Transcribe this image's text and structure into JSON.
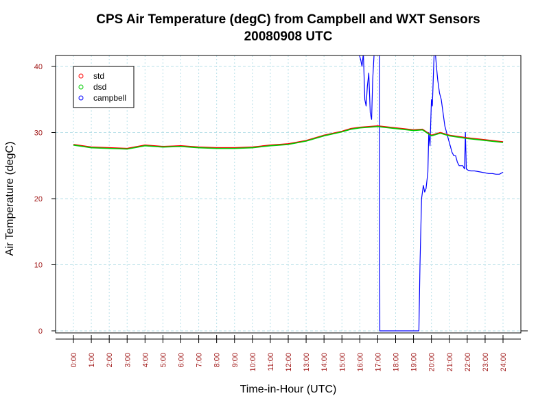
{
  "chart_data": {
    "type": "line",
    "title": "CPS Air Temperature (degC) from Campbell and WXT Sensors",
    "subtitle": "20080908  UTC",
    "xlabel": "Time-in-Hour (UTC)",
    "ylabel": "Air Temperature (degC)",
    "xlim": [
      0,
      24
    ],
    "ylim": [
      0,
      40
    ],
    "yticks": [
      0,
      10,
      20,
      30,
      40
    ],
    "xticks": [
      "0:00",
      "1:00",
      "2:00",
      "3:00",
      "4:00",
      "5:00",
      "6:00",
      "7:00",
      "8:00",
      "9:00",
      "10:00",
      "11:00",
      "12:00",
      "13:00",
      "14:00",
      "15:00",
      "16:00",
      "17:00",
      "18:00",
      "19:00",
      "20:00",
      "21:00",
      "22:00",
      "23:00",
      "24:00"
    ],
    "grid": true,
    "legend": {
      "position": "top-left",
      "entries": [
        "std",
        "dsd",
        "campbell"
      ]
    },
    "colors": {
      "std": "#ff0000",
      "dsd": "#00cc00",
      "campbell": "#0000ff",
      "grid": "#b8e0e8",
      "tick_label": "#a01818"
    },
    "series": [
      {
        "name": "std",
        "x": [
          0,
          1,
          2,
          3,
          4,
          5,
          6,
          7,
          8,
          9,
          10,
          11,
          12,
          13,
          14,
          15,
          15.5,
          16,
          17,
          18,
          19,
          19.5,
          20,
          20.5,
          21,
          22,
          23,
          24
        ],
        "y": [
          28.2,
          27.8,
          27.7,
          27.6,
          28.1,
          27.9,
          28.0,
          27.8,
          27.7,
          27.7,
          27.8,
          28.1,
          28.3,
          28.8,
          29.6,
          30.2,
          30.6,
          30.8,
          31.0,
          30.7,
          30.4,
          30.5,
          29.6,
          30.0,
          29.6,
          29.2,
          28.9,
          28.6
        ]
      },
      {
        "name": "dsd",
        "x": [
          0,
          1,
          2,
          3,
          4,
          5,
          6,
          7,
          8,
          9,
          10,
          11,
          12,
          13,
          14,
          15,
          15.5,
          16,
          17,
          18,
          19,
          19.5,
          20,
          20.5,
          21,
          22,
          23,
          24
        ],
        "y": [
          28.1,
          27.7,
          27.6,
          27.5,
          28.0,
          27.8,
          27.9,
          27.7,
          27.6,
          27.6,
          27.7,
          28.0,
          28.2,
          28.7,
          29.5,
          30.1,
          30.5,
          30.7,
          30.9,
          30.6,
          30.3,
          30.4,
          29.5,
          29.9,
          29.5,
          29.1,
          28.8,
          28.5
        ]
      },
      {
        "name": "campbell",
        "x": [
          15.95,
          16.05,
          16.12,
          16.2,
          16.28,
          16.35,
          16.42,
          16.5,
          16.58,
          16.66,
          16.72,
          16.8,
          17.1,
          17.12,
          19.3,
          19.36,
          19.45,
          19.55,
          19.62,
          19.7,
          19.8,
          19.85,
          19.92,
          20.0,
          20.05,
          20.1,
          20.15,
          20.22,
          20.28,
          20.35,
          20.45,
          20.55,
          20.65,
          20.75,
          20.85,
          20.95,
          21.05,
          21.15,
          21.25,
          21.35,
          21.45,
          21.55,
          21.65,
          21.75,
          21.85,
          21.9,
          21.95,
          22.05,
          22.2,
          22.4,
          22.6,
          22.8,
          23.0,
          23.2,
          23.4,
          23.6,
          23.8,
          24.0
        ],
        "y": [
          42,
          41,
          40,
          42,
          35,
          34,
          37,
          39,
          33,
          32,
          38,
          42,
          42,
          0,
          0,
          10,
          20,
          22,
          21,
          21.5,
          24,
          30,
          28,
          35,
          34,
          38,
          42,
          42,
          40,
          38,
          36,
          35,
          33,
          31,
          30,
          29,
          28,
          27,
          26.5,
          26.5,
          25.5,
          25,
          25,
          25,
          24.5,
          30,
          24.5,
          24.3,
          24.2,
          24.2,
          24.1,
          24.0,
          23.9,
          23.8,
          23.8,
          23.7,
          23.7,
          24.0
        ]
      }
    ]
  }
}
